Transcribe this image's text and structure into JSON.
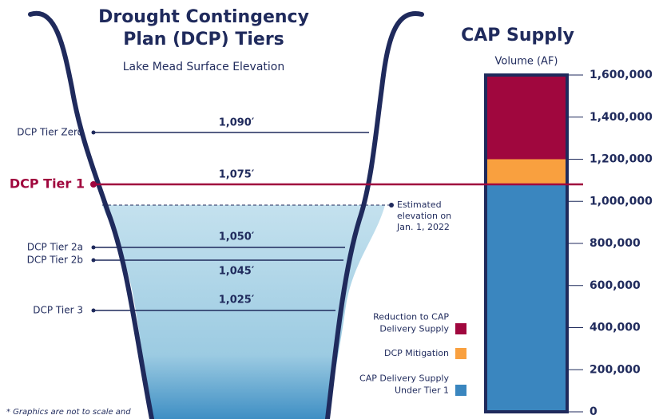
{
  "lake": {
    "title_lines": [
      "Drought Contingency",
      "Plan (DCP) Tiers"
    ],
    "subtitle": "Lake Mead Surface Elevation",
    "tiers": [
      {
        "label": "DCP Tier Zero",
        "elevation": "1,090′"
      },
      {
        "label": "DCP Tier 1",
        "elevation": "1,075′"
      },
      {
        "label": "DCP Tier 2a",
        "elevation": "1,050′"
      },
      {
        "label": "DCP Tier 2b",
        "elevation": "1,045′"
      },
      {
        "label": "DCP Tier 3",
        "elevation": "1,025′"
      }
    ],
    "estimate_lines": [
      "Estimated",
      "elevation on",
      "Jan. 1, 2022"
    ],
    "footnote": "* Graphics are not to scale and"
  },
  "chart_data": {
    "type": "stacked-bar",
    "title": "CAP Supply",
    "y_label": "Volume (AF)",
    "categories": [
      "CAP Supply"
    ],
    "series": [
      {
        "name_lines": [
          "CAP Delivery Supply",
          "Under Tier 1"
        ],
        "color": "#3a86bf",
        "values": [
          1080000
        ]
      },
      {
        "name_lines": [
          "DCP Mitigation"
        ],
        "color": "#f9a03f",
        "values": [
          120000
        ]
      },
      {
        "name_lines": [
          "Reduction to CAP",
          "Delivery Supply"
        ],
        "color": "#a0073e",
        "values": [
          400000
        ]
      }
    ],
    "ylim": [
      0,
      1600000
    ],
    "yticks": [
      {
        "value": 0,
        "label": "0"
      },
      {
        "value": 200000,
        "label": "200,000"
      },
      {
        "value": 400000,
        "label": "400,000"
      },
      {
        "value": 600000,
        "label": "600,000"
      },
      {
        "value": 800000,
        "label": "800,000"
      },
      {
        "value": 1000000,
        "label": "1,000,000"
      },
      {
        "value": 1200000,
        "label": "1,200,000"
      },
      {
        "value": 1400000,
        "label": "1,400,000"
      },
      {
        "value": 1600000,
        "label": "1,600,000"
      }
    ]
  }
}
